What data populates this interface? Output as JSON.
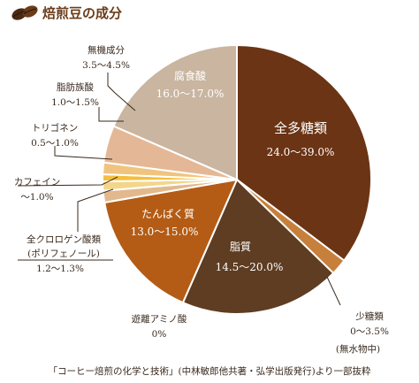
{
  "header": {
    "title": "焙煎豆の成分",
    "icon": "coffee-beans-icon"
  },
  "chart_data": {
    "type": "pie",
    "title": "焙煎豆の成分",
    "slices": [
      {
        "name": "全多糖類",
        "range": "24.0〜39.0%",
        "value": 31.5,
        "color": "#6b3414"
      },
      {
        "name": "少糖類",
        "range": "0〜3.5%",
        "value": 1.75,
        "color": "#c7803b"
      },
      {
        "name": "脂質",
        "range": "14.5〜20.0%",
        "value": 17.25,
        "color": "#5e3d22"
      },
      {
        "name": "遊離アミノ酸",
        "range": "0%",
        "value": 0,
        "color": "#8a5a30"
      },
      {
        "name": "たんぱく質",
        "range": "13.0〜15.0%",
        "value": 14.0,
        "color": "#b45c15"
      },
      {
        "name": "全クロロゲン酸類\n(ポリフェノール)",
        "range": "1.2〜1.3%",
        "value": 1.25,
        "color": "#e2b98c"
      },
      {
        "name": "カフェイン",
        "range": "〜1.0%",
        "value": 1.0,
        "color": "#f3d68c"
      },
      {
        "name": "トリゴネン",
        "range": "0.5〜1.0%",
        "value": 0.75,
        "color": "#f4bf3c"
      },
      {
        "name": "脂肪族酸",
        "range": "1.0〜1.5%",
        "value": 1.25,
        "color": "#f0c47e"
      },
      {
        "name": "無機成分",
        "range": "3.5〜4.5%",
        "value": 4.0,
        "color": "#e4b896"
      },
      {
        "name": "腐食酸",
        "range": "16.0〜17.0%",
        "value": 16.5,
        "color": "#c9b5a0"
      }
    ]
  },
  "labels": {
    "polysaccharides": {
      "name": "全多糖類",
      "range": "24.0〜39.0%"
    },
    "humic": {
      "name": "腐食酸",
      "range": "16.0〜17.0%"
    },
    "lipid": {
      "name": "脂質",
      "range": "14.5〜20.0%"
    },
    "protein": {
      "name": "たんぱく質",
      "range": "13.0〜15.0%"
    },
    "minerals": {
      "name": "無機成分",
      "range": "3.5〜4.5%"
    },
    "aliphatic": {
      "name": "脂肪族酸",
      "range": "1.0〜1.5%"
    },
    "trigonelline": {
      "name": "トリゴネン",
      "range": "0.5〜1.0%"
    },
    "caffeine": {
      "name": "カフェイン",
      "range": "〜1.0%"
    },
    "chlorogenic": {
      "name": "全クロロゲン酸類",
      "sub": "(ポリフェノール)",
      "range": "1.2〜1.3%"
    },
    "amino": {
      "name": "遊離アミノ酸",
      "range": "0%"
    },
    "oligo": {
      "name": "少糖類",
      "range": "0〜3.5%"
    }
  },
  "note": "(無水物中)",
  "footer": "「コーヒー焙煎の化学と技術」(中林敏郎他共著・弘学出版発行)より一部抜粋"
}
